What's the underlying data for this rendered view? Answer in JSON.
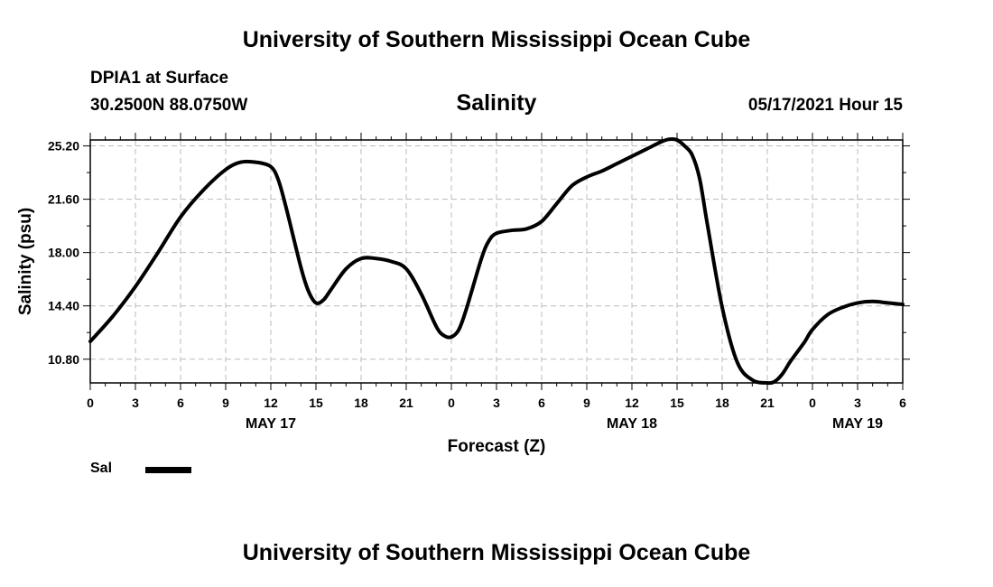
{
  "header": {
    "title": "University of Southern Mississippi Ocean Cube",
    "footer_title": "University of Southern Mississippi Ocean Cube",
    "station": "DPIA1 at Surface",
    "coords": "30.2500N  88.0750W",
    "variable": "Salinity",
    "timestamp": "05/17/2021 Hour 15"
  },
  "legend": {
    "label": "Sal",
    "color": "#000000"
  },
  "chart_data": {
    "type": "line",
    "title": "Salinity",
    "xlabel": "Forecast (Z)",
    "ylabel": "Salinity (psu)",
    "xlim": [
      0,
      54
    ],
    "ylim": [
      9.2,
      25.6
    ],
    "yticks": [
      "10.80",
      "14.40",
      "18.00",
      "21.60",
      "25.20"
    ],
    "ytick_values": [
      10.8,
      14.4,
      18.0,
      21.6,
      25.2
    ],
    "xticks": [
      0,
      3,
      6,
      9,
      12,
      15,
      18,
      21,
      24,
      27,
      30,
      33,
      36,
      39,
      42,
      45,
      48,
      51,
      54
    ],
    "xtick_labels": [
      "0",
      "3",
      "6",
      "9",
      "12",
      "15",
      "18",
      "21",
      "0",
      "3",
      "6",
      "9",
      "12",
      "15",
      "18",
      "21",
      "0",
      "3",
      "6"
    ],
    "date_labels": [
      {
        "hour": 12,
        "label": "MAY 17"
      },
      {
        "hour": 36,
        "label": "MAY 18"
      },
      {
        "hour": 51,
        "label": "MAY 19"
      }
    ],
    "grid": true,
    "legend_position": "bottom-left",
    "series": [
      {
        "name": "Sal",
        "color": "#000000",
        "x": [
          0,
          1.5,
          3,
          4.5,
          6,
          7.5,
          9,
          10,
          11,
          12,
          12.5,
          13,
          14,
          14.5,
          15,
          15.5,
          16,
          17,
          18,
          19,
          20,
          21,
          22,
          23,
          23.5,
          24,
          24.5,
          25,
          26,
          26.5,
          27,
          28,
          29,
          30,
          31,
          32,
          33,
          34,
          35,
          36,
          37,
          38,
          38.5,
          39,
          39.5,
          40,
          40.5,
          41,
          42,
          43,
          44,
          45,
          45.5,
          46,
          46.5,
          47,
          47.5,
          48,
          49,
          50,
          51,
          52,
          53,
          54
        ],
        "y": [
          12.0,
          13.7,
          15.7,
          18.0,
          20.4,
          22.2,
          23.6,
          24.1,
          24.1,
          23.8,
          22.9,
          21.1,
          17.0,
          15.4,
          14.6,
          14.8,
          15.5,
          16.9,
          17.6,
          17.6,
          17.4,
          16.9,
          15.2,
          13.0,
          12.4,
          12.3,
          12.8,
          14.2,
          17.6,
          18.8,
          19.3,
          19.5,
          19.6,
          20.1,
          21.3,
          22.5,
          23.1,
          23.5,
          24.0,
          24.5,
          25.0,
          25.5,
          25.65,
          25.6,
          25.2,
          24.6,
          23.0,
          20.0,
          14.3,
          10.6,
          9.4,
          9.2,
          9.3,
          9.8,
          10.6,
          11.3,
          12.0,
          12.8,
          13.8,
          14.3,
          14.6,
          14.7,
          14.6,
          14.5
        ]
      }
    ]
  }
}
